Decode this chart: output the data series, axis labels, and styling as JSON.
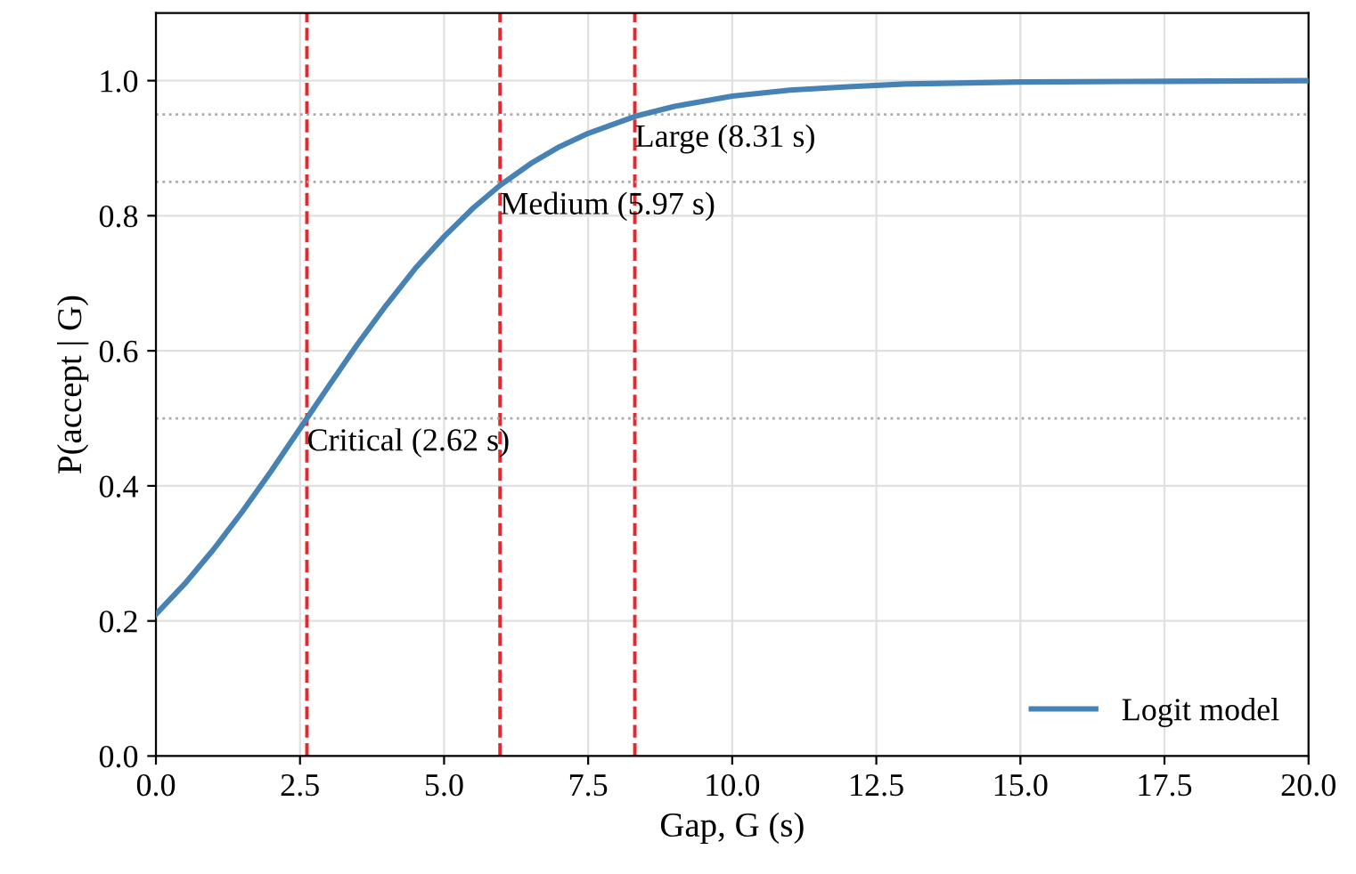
{
  "chart_data": {
    "type": "line",
    "xlabel": "Gap, G (s)",
    "ylabel": "P(accept | G)",
    "series": [
      {
        "name": "Logit model",
        "color": "#4682b4",
        "x": [
          0,
          0.5,
          1,
          1.5,
          2,
          2.62,
          3,
          3.5,
          4,
          4.5,
          5,
          5.5,
          5.97,
          6.5,
          7,
          7.5,
          8.31,
          9,
          10,
          11,
          12,
          13,
          15,
          17.5,
          20
        ],
        "values": [
          0.21,
          0.255,
          0.306,
          0.362,
          0.422,
          0.5,
          0.548,
          0.61,
          0.668,
          0.722,
          0.769,
          0.811,
          0.845,
          0.877,
          0.902,
          0.922,
          0.947,
          0.962,
          0.977,
          0.986,
          0.991,
          0.995,
          0.998,
          0.999,
          1.0
        ]
      }
    ],
    "xlim": [
      0,
      20
    ],
    "ylim": [
      0,
      1.1
    ],
    "xticks": [
      {
        "value": 0,
        "label": "0.0"
      },
      {
        "value": 2.5,
        "label": "2.5"
      },
      {
        "value": 5,
        "label": "5.0"
      },
      {
        "value": 7.5,
        "label": "7.5"
      },
      {
        "value": 10,
        "label": "10.0"
      },
      {
        "value": 12.5,
        "label": "12.5"
      },
      {
        "value": 15,
        "label": "15.0"
      },
      {
        "value": 17.5,
        "label": "17.5"
      },
      {
        "value": 20,
        "label": "20.0"
      }
    ],
    "yticks": [
      {
        "value": 0,
        "label": "0.0"
      },
      {
        "value": 0.2,
        "label": "0.2"
      },
      {
        "value": 0.4,
        "label": "0.4"
      },
      {
        "value": 0.6,
        "label": "0.6"
      },
      {
        "value": 0.8,
        "label": "0.8"
      },
      {
        "value": 1,
        "label": "1.0"
      }
    ],
    "ref_lines": [
      {
        "axis": "x",
        "value": 2.62,
        "color": "#e8262b",
        "line_style": "dashed"
      },
      {
        "axis": "x",
        "value": 5.97,
        "color": "#e8262b",
        "line_style": "dashed"
      },
      {
        "axis": "x",
        "value": 8.31,
        "color": "#e8262b",
        "line_style": "dashed"
      },
      {
        "axis": "y",
        "value": 0.5,
        "color": "#aaaaaa",
        "line_style": "dotted"
      },
      {
        "axis": "y",
        "value": 0.85,
        "color": "#aaaaaa",
        "line_style": "dotted"
      },
      {
        "axis": "y",
        "value": 0.95,
        "color": "#aaaaaa",
        "line_style": "dotted"
      }
    ],
    "annotations": [
      {
        "text": "Critical (2.62 s)",
        "x": 2.62,
        "y": 0.5
      },
      {
        "text": "Medium (5.97 s)",
        "x": 5.97,
        "y": 0.85
      },
      {
        "text": "Large (8.31 s)",
        "x": 8.31,
        "y": 0.95
      }
    ],
    "grid": true,
    "legend": "bottom right",
    "marker": "none",
    "line_style": "solid"
  }
}
